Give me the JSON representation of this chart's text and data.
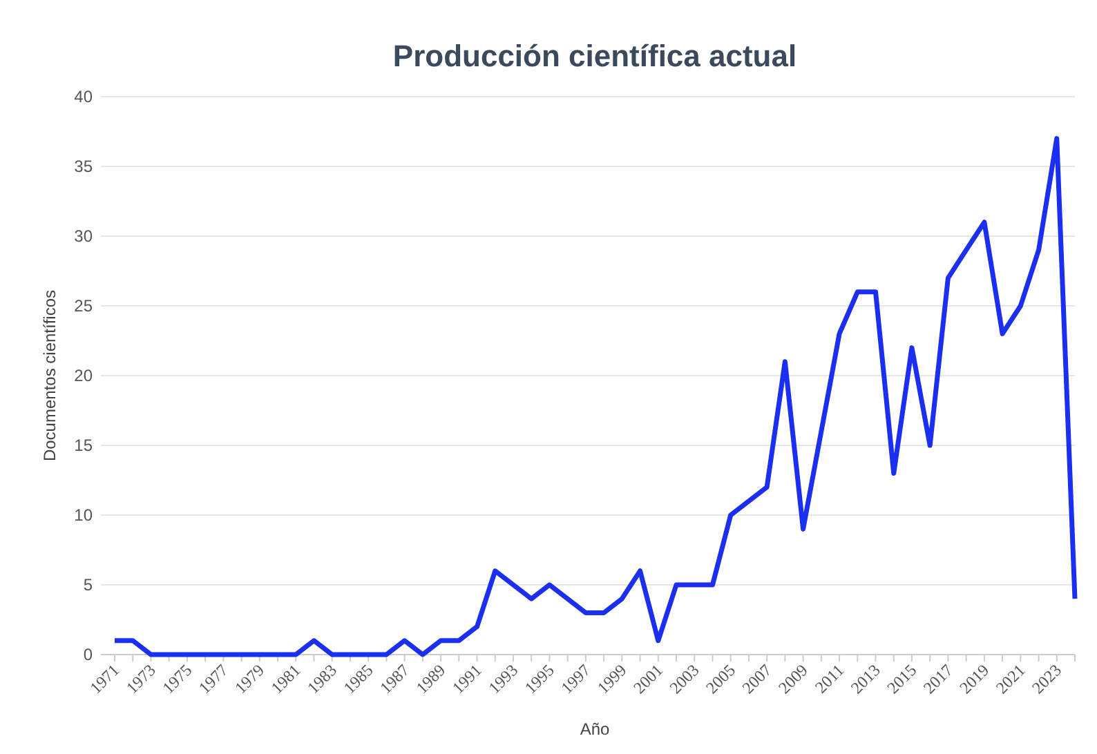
{
  "chart_data": {
    "type": "line",
    "title": "Producción científica actual",
    "xlabel": "Año",
    "ylabel": "Documentos científicos",
    "categories": [
      "1971",
      null,
      "1973",
      null,
      "1975",
      null,
      "1977",
      null,
      "1979",
      null,
      "1981",
      null,
      "1983",
      null,
      "1985",
      null,
      "1987",
      null,
      "1989",
      null,
      "1991",
      null,
      "1993",
      null,
      "1995",
      null,
      "1997",
      null,
      "1999",
      null,
      "2001",
      null,
      "2003",
      null,
      "2005",
      null,
      "2007",
      null,
      "2009",
      null,
      "2011",
      null,
      "2013",
      null,
      "2015",
      null,
      "2017",
      null,
      "2019",
      null,
      "2021",
      null,
      "2023",
      null
    ],
    "series": [
      {
        "color": "#1a2ff0",
        "values": [
          1,
          1,
          0,
          0,
          0,
          0,
          0,
          0,
          0,
          0,
          0,
          1,
          0,
          0,
          0,
          0,
          1,
          0,
          1,
          1,
          2,
          6,
          5,
          4,
          5,
          4,
          3,
          3,
          4,
          6,
          1,
          5,
          5,
          5,
          10,
          11,
          12,
          21,
          9,
          16,
          23,
          26,
          26,
          13,
          22,
          15,
          27,
          29,
          31,
          23,
          25,
          29,
          37,
          4
        ]
      }
    ],
    "ylim": [
      0,
      40
    ],
    "yticks": [
      0,
      5,
      10,
      15,
      20,
      25,
      30,
      35,
      40
    ],
    "grid": "y",
    "marker": "none",
    "line_style": "solid"
  }
}
